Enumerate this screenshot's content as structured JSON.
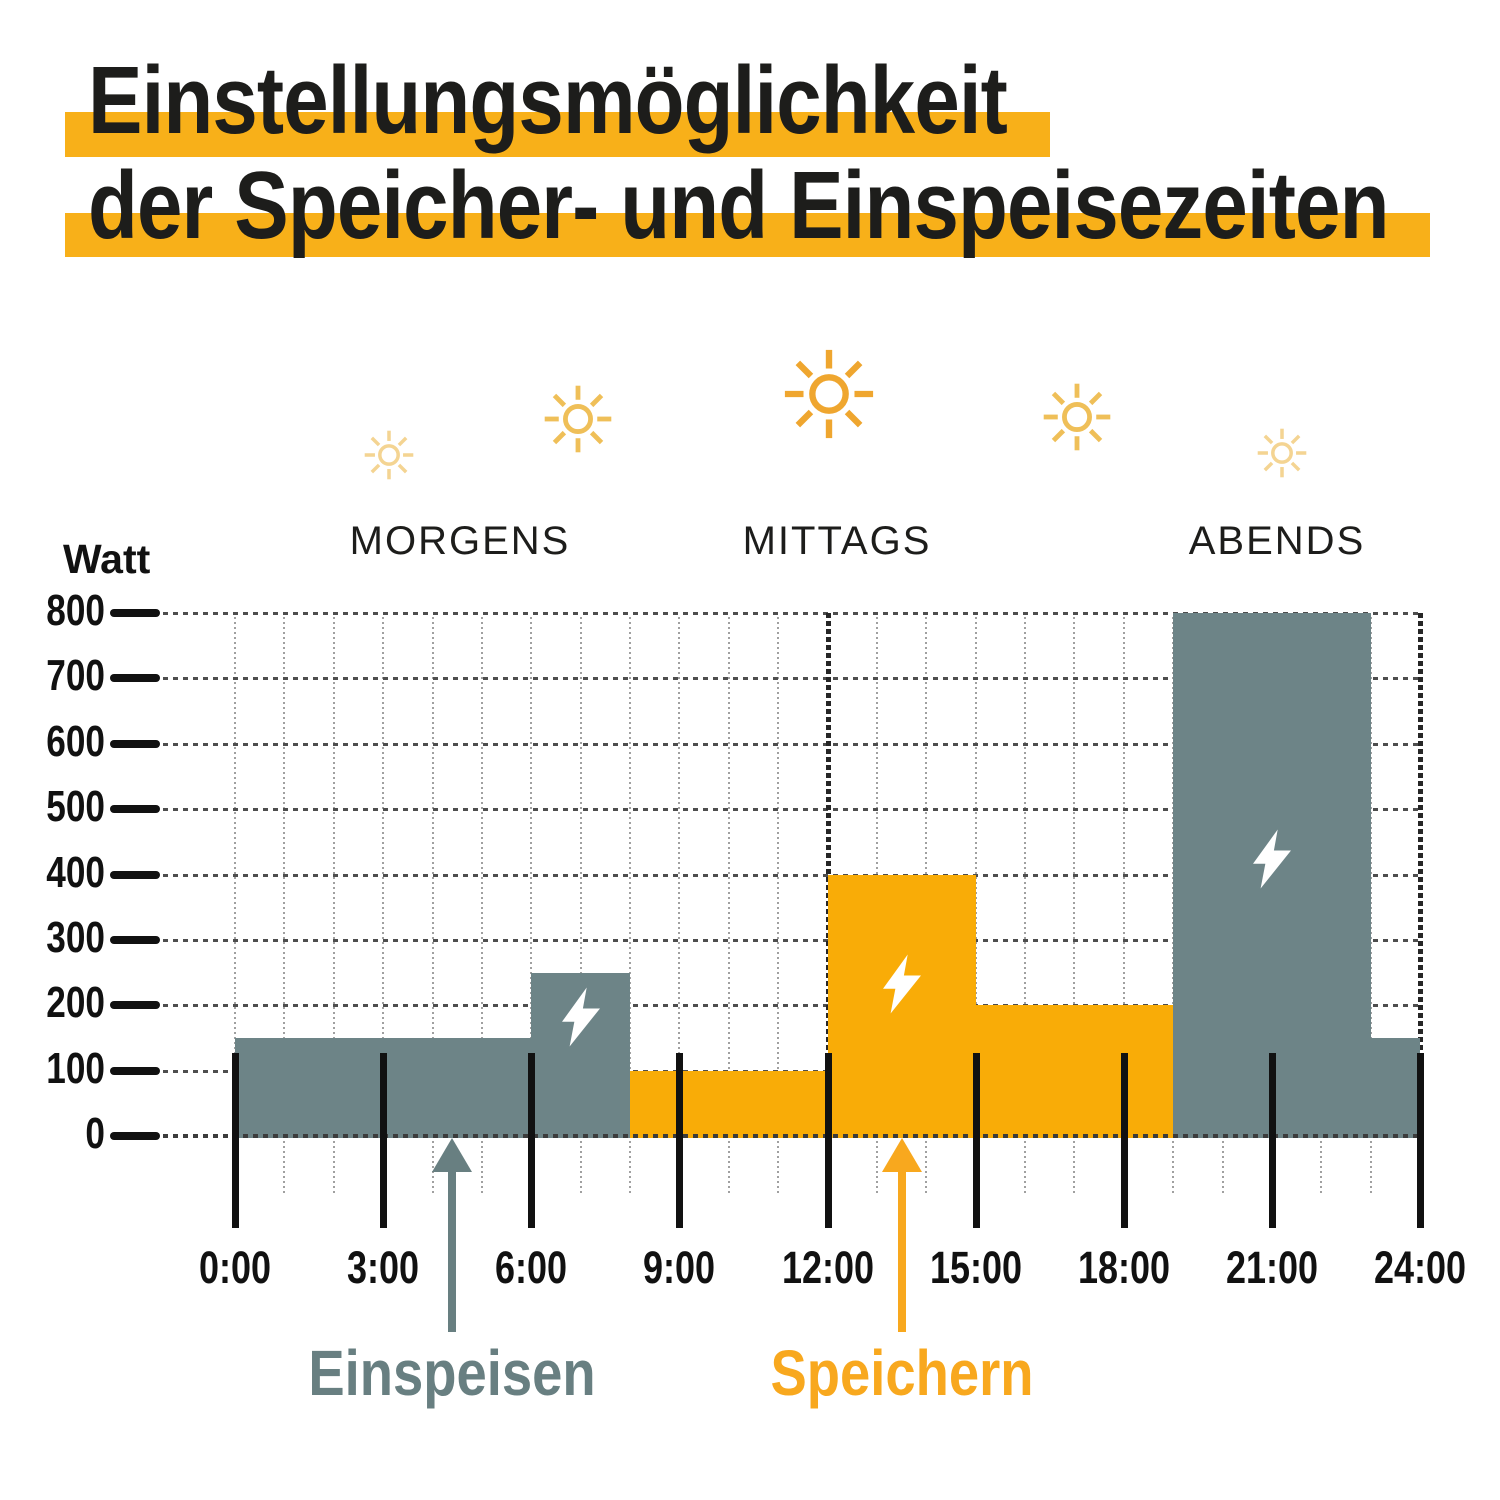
{
  "title": {
    "line1": "Einstellungsmöglichkeit",
    "line2": "der Speicher- und Einspeisezeiten"
  },
  "colors": {
    "title_highlight": "#F8B019",
    "text_dark": "#1D1D1B",
    "axis_black": "#111111",
    "grid_major": "#4E4E4E",
    "grid_minor": "#A0A0A0",
    "divider_dash": "#262626",
    "zero_line": "#3C3C3C",
    "feed_gray": "#6D8487",
    "store_yellow": "#F9AC07",
    "einspeisen_label": "#687F81",
    "speichern_label": "#F8A81E",
    "bolt_white": "#FFFFFF",
    "sun_large": "#EFA62F",
    "sun_medium": "#EFBF58",
    "sun_small": "#F4D492"
  },
  "daytime_header": {
    "periods": [
      {
        "label": "MORGENS"
      },
      {
        "label": "MITTAGS"
      },
      {
        "label": "ABENDS"
      }
    ],
    "suns": [
      {
        "name": "sun-icon-small",
        "size": "small"
      },
      {
        "name": "sun-icon-medium",
        "size": "medium"
      },
      {
        "name": "sun-icon-large",
        "size": "large"
      },
      {
        "name": "sun-icon-medium",
        "size": "medium"
      },
      {
        "name": "sun-icon-small",
        "size": "small"
      }
    ]
  },
  "chart_data": {
    "type": "bar",
    "title": "Einstellungsmöglichkeit der Speicher- und Einspeisezeiten",
    "ylabel": "Watt",
    "ylim": [
      0,
      800
    ],
    "y_ticks": [
      0,
      100,
      200,
      300,
      400,
      500,
      600,
      700,
      800
    ],
    "x_ticks": [
      "0:00",
      "3:00",
      "6:00",
      "9:00",
      "12:00",
      "15:00",
      "18:00",
      "21:00",
      "24:00"
    ],
    "x_range_hours": [
      0,
      24
    ],
    "grid": true,
    "dashed_divider_hours": [
      12,
      24
    ],
    "segments": [
      {
        "start_hour": 0,
        "end_hour": 6,
        "watts": 150,
        "mode": "einspeisen",
        "color_key": "feed_gray",
        "bolt": false
      },
      {
        "start_hour": 6,
        "end_hour": 8,
        "watts": 250,
        "mode": "einspeisen",
        "color_key": "feed_gray",
        "bolt": true
      },
      {
        "start_hour": 8,
        "end_hour": 12,
        "watts": 100,
        "mode": "speichern",
        "color_key": "store_yellow",
        "bolt": false
      },
      {
        "start_hour": 12,
        "end_hour": 15,
        "watts": 400,
        "mode": "speichern",
        "color_key": "store_yellow",
        "bolt": true
      },
      {
        "start_hour": 15,
        "end_hour": 19,
        "watts": 200,
        "mode": "speichern",
        "color_key": "store_yellow",
        "bolt": false
      },
      {
        "start_hour": 19,
        "end_hour": 23,
        "watts": 800,
        "mode": "einspeisen",
        "color_key": "feed_gray",
        "bolt": true
      },
      {
        "start_hour": 23,
        "end_hour": 24,
        "watts": 150,
        "mode": "einspeisen",
        "color_key": "feed_gray",
        "bolt": false
      }
    ],
    "annotations": [
      {
        "label": "Einspeisen",
        "hour": 4.4,
        "color_key": "einspeisen_label"
      },
      {
        "label": "Speichern",
        "hour": 13.5,
        "color_key": "speichern_label"
      }
    ]
  }
}
